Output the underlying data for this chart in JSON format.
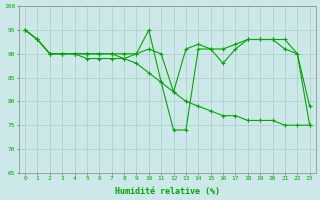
{
  "xlabel": "Humidité relative (%)",
  "background_color": "#cce8e8",
  "grid_color": "#aacccc",
  "line_color": "#00aa00",
  "ylim": [
    65,
    100
  ],
  "xlim": [
    -0.5,
    23.5
  ],
  "yticks": [
    65,
    70,
    75,
    80,
    85,
    90,
    95,
    100
  ],
  "xticks": [
    0,
    1,
    2,
    3,
    4,
    5,
    6,
    7,
    8,
    9,
    10,
    11,
    12,
    13,
    14,
    15,
    16,
    17,
    18,
    19,
    20,
    21,
    22,
    23
  ],
  "series": [
    [
      95,
      93,
      90,
      90,
      90,
      90,
      90,
      90,
      89,
      90,
      95,
      84,
      74,
      74,
      91,
      91,
      88,
      91,
      93,
      93,
      93,
      91,
      90,
      79
    ],
    [
      95,
      93,
      90,
      90,
      90,
      90,
      90,
      90,
      90,
      90,
      91,
      90,
      82,
      91,
      92,
      91,
      91,
      92,
      93,
      93,
      93,
      93,
      90,
      75
    ],
    [
      95,
      93,
      90,
      90,
      90,
      89,
      89,
      89,
      89,
      88,
      86,
      84,
      82,
      80,
      79,
      78,
      77,
      77,
      76,
      76,
      76,
      75,
      75,
      75
    ]
  ]
}
